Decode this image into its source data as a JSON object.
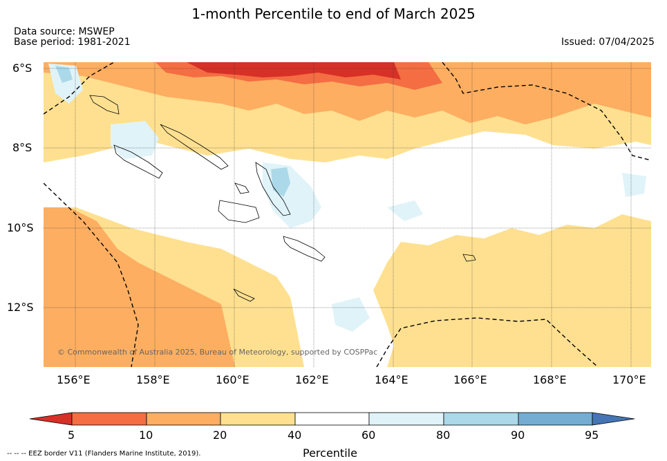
{
  "title": "1-month Percentile to end of March 2025",
  "data_source": "Data source: MSWEP",
  "base_period": "Base period: 1981-2021",
  "issued": "Issued: 07/04/2025",
  "copyright": "© Commonwealth of Australia 2025, Bureau of Meteorology, supported by COSPPac",
  "lat_labels": [
    "6°S",
    "8°S",
    "10°S",
    "12°S"
  ],
  "lon_labels": [
    "156°E",
    "158°E",
    "160°E",
    "162°E",
    "164°E",
    "166°E",
    "168°E",
    "170°E"
  ],
  "colorbar": {
    "label": "Percentile",
    "ticks": [
      "5",
      "10",
      "20",
      "40",
      "60",
      "80",
      "90",
      "95"
    ],
    "colors": [
      "#d73027",
      "#f46d43",
      "#fdae61",
      "#fee090",
      "#ffffff",
      "#e0f3f8",
      "#abd9e9",
      "#74add1",
      "#4575b4"
    ]
  },
  "legend_note": "-- -- -- EEZ border V11 (Flanders Marine Institute, 2019)."
}
